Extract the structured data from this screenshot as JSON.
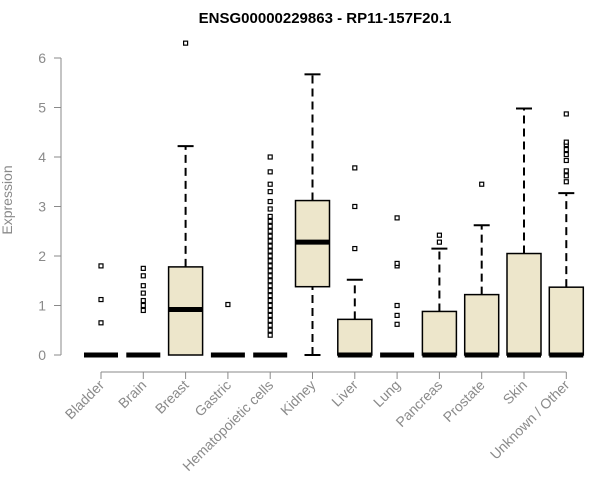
{
  "chart_data": {
    "type": "boxplot",
    "title": "ENSG00000229863 - RP11-157F20.1",
    "xlabel": "",
    "ylabel": "Expression",
    "ylim": [
      0,
      6.3
    ],
    "yticks": [
      0,
      1,
      2,
      3,
      4,
      5,
      6
    ],
    "categories": [
      "Bladder",
      "Brain",
      "Breast",
      "Gastric",
      "Hematopoietic cells",
      "Kidney",
      "Liver",
      "Lung",
      "Pancreas",
      "Prostate",
      "Skin",
      "Unknown / Other"
    ],
    "boxes": [
      {
        "min": 0,
        "q1": 0,
        "median": 0,
        "q3": 0,
        "max": 0,
        "outliers": [
          0.65,
          1.12,
          1.8
        ]
      },
      {
        "min": 0,
        "q1": 0,
        "median": 0,
        "q3": 0,
        "max": 0,
        "outliers": [
          0.9,
          1.0,
          1.1,
          1.25,
          1.4,
          1.6,
          1.75
        ]
      },
      {
        "min": 0,
        "q1": 0,
        "median": 0.92,
        "q3": 1.78,
        "max": 4.22,
        "outliers": [
          6.3
        ]
      },
      {
        "min": 0,
        "q1": 0,
        "median": 0,
        "q3": 0,
        "max": 0,
        "outliers": [
          1.02
        ]
      },
      {
        "min": 0,
        "q1": 0,
        "median": 0,
        "q3": 0,
        "max": 0,
        "outliers": [
          0.4,
          0.5,
          0.6,
          0.7,
          0.8,
          0.9,
          1.0,
          1.1,
          1.2,
          1.3,
          1.4,
          1.5,
          1.6,
          1.7,
          1.8,
          1.9,
          2.0,
          2.1,
          2.2,
          2.3,
          2.4,
          2.5,
          2.6,
          2.7,
          2.8,
          2.95,
          3.1,
          3.3,
          3.45,
          3.7,
          4.0
        ]
      },
      {
        "min": 0,
        "q1": 1.38,
        "median": 2.28,
        "q3": 3.12,
        "max": 5.67,
        "outliers": []
      },
      {
        "min": 0,
        "q1": 0,
        "median": 0,
        "q3": 0.72,
        "max": 1.52,
        "outliers": [
          2.15,
          3.0,
          3.78
        ]
      },
      {
        "min": 0,
        "q1": 0,
        "median": 0,
        "q3": 0,
        "max": 0,
        "outliers": [
          0.62,
          0.8,
          1.0,
          1.8,
          1.85,
          2.77
        ]
      },
      {
        "min": 0,
        "q1": 0,
        "median": 0,
        "q3": 0.88,
        "max": 2.15,
        "outliers": [
          2.28,
          2.42
        ]
      },
      {
        "min": 0,
        "q1": 0,
        "median": 0,
        "q3": 1.22,
        "max": 2.62,
        "outliers": [
          3.45
        ]
      },
      {
        "min": 0,
        "q1": 0,
        "median": 0,
        "q3": 2.05,
        "max": 4.98,
        "outliers": []
      },
      {
        "min": 0,
        "q1": 0,
        "median": 0,
        "q3": 1.37,
        "max": 3.27,
        "outliers": [
          3.5,
          3.62,
          3.72,
          3.93,
          4.05,
          4.15,
          4.25,
          4.3,
          4.87
        ]
      }
    ],
    "box_fill": "#ede6cb",
    "line_color": "#000000",
    "axis_color": "#8a8a8a"
  }
}
